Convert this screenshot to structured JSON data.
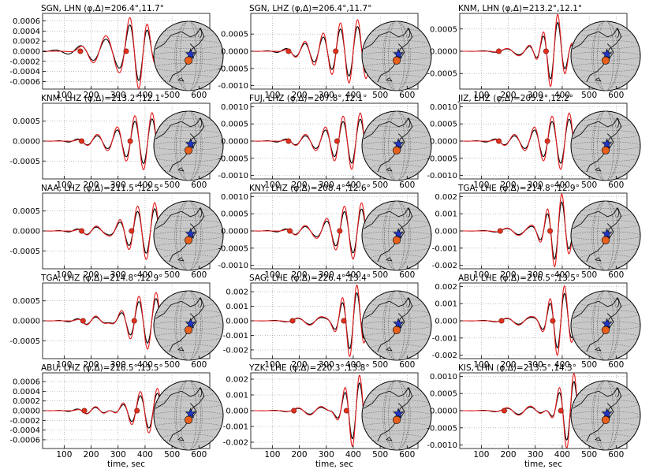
{
  "figure": {
    "xlabel": "time, sec",
    "colors": {
      "observed": "#000000",
      "synthetic": "#e41a1c",
      "marker_fill": "#e0301e",
      "globe_fill": "#c8c8c8",
      "station_marker": "#1f35c6",
      "event_marker": "#e8601c",
      "grid": "#9a9a9a"
    }
  },
  "chart_data": [
    {
      "type": "line",
      "title": "SGN, LHN (φ,Δ)=206.4°,11.7°",
      "xlim": [
        20,
        640
      ],
      "xticks": [
        100,
        200,
        300,
        400,
        500,
        600
      ],
      "ylim": [
        -0.00075,
        0.00075
      ],
      "yticks": [
        "0.0006",
        "0.0004",
        "0.0002",
        "0.0000",
        "-0.0002",
        "-0.0004",
        "-0.0006"
      ],
      "ytick_values": [
        0.0006,
        0.0004,
        0.0002,
        0,
        -0.0002,
        -0.0004,
        -0.0006
      ],
      "markers": [
        160,
        330
      ],
      "wave": {
        "amp": 0.00065,
        "center": 390,
        "shape": "A"
      },
      "show_xticklabels": true,
      "show_xlabel": false
    },
    {
      "type": "line",
      "title": "SGN, LHZ (φ,Δ)=206.4°,11.7°",
      "xlim": [
        20,
        640
      ],
      "xticks": [
        100,
        200,
        300,
        400,
        500,
        600
      ],
      "ylim": [
        -0.0011,
        0.0011
      ],
      "yticks": [
        "0.0005",
        "0.0000",
        "-0.0005",
        "-0.0010"
      ],
      "ytick_values": [
        0.0005,
        0,
        -0.0005,
        -0.001
      ],
      "markers": [
        160,
        335
      ],
      "wave": {
        "amp": 0.0009,
        "center": 400,
        "shape": "B"
      },
      "show_xticklabels": true,
      "show_xlabel": false
    },
    {
      "type": "line",
      "title": "KNM, LHN (φ,Δ)=213.2°,12.1°",
      "xlim": [
        20,
        640
      ],
      "xticks": [
        100,
        200,
        300,
        400,
        500,
        600
      ],
      "ylim": [
        -0.00085,
        0.00085
      ],
      "yticks": [
        "0.0005",
        "0.0000",
        "-0.0005"
      ],
      "ytick_values": [
        0.0005,
        0,
        -0.0005
      ],
      "markers": [
        165,
        340
      ],
      "wave": {
        "amp": 0.00075,
        "center": 370,
        "shape": "C"
      },
      "show_xticklabels": true,
      "show_xlabel": false
    },
    {
      "type": "line",
      "title": "KNM, LHZ (φ,Δ)=213.2°,12.1°",
      "xlim": [
        20,
        640
      ],
      "xticks": [
        100,
        200,
        300,
        400,
        500,
        600
      ],
      "ylim": [
        -0.00095,
        0.00095
      ],
      "yticks": [
        "0.0005",
        "0.0000",
        "-0.0005"
      ],
      "ytick_values": [
        0.0005,
        0,
        -0.0005
      ],
      "markers": [
        165,
        345
      ],
      "wave": {
        "amp": 0.0007,
        "center": 410,
        "shape": "B"
      },
      "show_xticklabels": true,
      "show_xlabel": false
    },
    {
      "type": "line",
      "title": "FUJ, LHZ (φ,Δ)=207.8°,12.1°",
      "xlim": [
        20,
        640
      ],
      "xticks": [
        100,
        200,
        300,
        400,
        500,
        600
      ],
      "ylim": [
        -0.0011,
        0.0011
      ],
      "yticks": [
        "0.0010",
        "0.0005",
        "0.0000",
        "-0.0005",
        "-0.0010"
      ],
      "ytick_values": [
        0.001,
        0.0005,
        0,
        -0.0005,
        -0.001
      ],
      "markers": [
        160,
        340
      ],
      "wave": {
        "amp": 0.0008,
        "center": 410,
        "shape": "B"
      },
      "show_xticklabels": true,
      "show_xlabel": false
    },
    {
      "type": "line",
      "title": "JIZ, LHZ (φ,Δ)=205.2°,12.2°",
      "xlim": [
        20,
        640
      ],
      "xticks": [
        100,
        200,
        300,
        400,
        500,
        600
      ],
      "ylim": [
        -0.0011,
        0.0011
      ],
      "yticks": [
        "0.0010",
        "0.0005",
        "0.0000",
        "-0.0005",
        "-0.0010"
      ],
      "ytick_values": [
        0.001,
        0.0005,
        0,
        -0.0005,
        -0.001
      ],
      "markers": [
        165,
        345
      ],
      "wave": {
        "amp": 0.0008,
        "center": 410,
        "shape": "B"
      },
      "show_xticklabels": true,
      "show_xlabel": false
    },
    {
      "type": "line",
      "title": "NAA, LHZ (φ,Δ)=211.5°,12.5°",
      "xlim": [
        20,
        640
      ],
      "xticks": [
        100,
        200,
        300,
        400,
        500,
        600
      ],
      "ylim": [
        -0.00095,
        0.00095
      ],
      "yticks": [
        "0.0005",
        "0.0000",
        "-0.0005"
      ],
      "ytick_values": [
        0.0005,
        0,
        -0.0005
      ],
      "markers": [
        165,
        350
      ],
      "wave": {
        "amp": 0.0007,
        "center": 420,
        "shape": "B"
      },
      "show_xticklabels": true,
      "show_xlabel": false
    },
    {
      "type": "line",
      "title": "KNY, LHZ (φ,Δ)=208.4°,12.6°",
      "xlim": [
        20,
        640
      ],
      "xticks": [
        100,
        200,
        300,
        400,
        500,
        600
      ],
      "ylim": [
        -0.0011,
        0.0011
      ],
      "yticks": [
        "0.0010",
        "0.0005",
        "0.0000",
        "-0.0005",
        "-0.0010"
      ],
      "ytick_values": [
        0.001,
        0.0005,
        0,
        -0.0005,
        -0.001
      ],
      "markers": [
        165,
        350
      ],
      "wave": {
        "amp": 0.0008,
        "center": 415,
        "shape": "B"
      },
      "show_xticklabels": true,
      "show_xlabel": false
    },
    {
      "type": "line",
      "title": "TGA, LHE (φ,Δ)=214.8°,12.9°",
      "xlim": [
        20,
        640
      ],
      "xticks": [
        100,
        200,
        300,
        400,
        500,
        600
      ],
      "ylim": [
        -0.0022,
        0.0022
      ],
      "yticks": [
        "0.002",
        "0.001",
        "0.000",
        "-0.001",
        "-0.002"
      ],
      "ytick_values": [
        0.002,
        0.001,
        0,
        -0.001,
        -0.002
      ],
      "markers": [
        170,
        355
      ],
      "wave": {
        "amp": 0.002,
        "center": 385,
        "shape": "C"
      },
      "show_xticklabels": true,
      "show_xlabel": false
    },
    {
      "type": "line",
      "title": "TGA, LHZ (φ,Δ)=214.8°,12.9°",
      "xlim": [
        20,
        640
      ],
      "xticks": [
        100,
        200,
        300,
        400,
        500,
        600
      ],
      "ylim": [
        -0.00095,
        0.00095
      ],
      "yticks": [
        "0.0005",
        "0.0000",
        "-0.0005"
      ],
      "ytick_values": [
        0.0005,
        0,
        -0.0005
      ],
      "markers": [
        170,
        360
      ],
      "wave": {
        "amp": 0.0007,
        "center": 425,
        "shape": "B"
      },
      "show_xticklabels": true,
      "show_xlabel": false
    },
    {
      "type": "line",
      "title": "SAG, LHE (φ,Δ)=226.4°,13.4°",
      "xlim": [
        20,
        640
      ],
      "xticks": [
        100,
        200,
        300,
        400,
        500,
        600
      ],
      "ylim": [
        -0.0026,
        0.0026
      ],
      "yticks": [
        "0.002",
        "0.001",
        "0.000",
        "-0.001",
        "-0.002"
      ],
      "ytick_values": [
        0.002,
        0.001,
        0,
        -0.001,
        -0.002
      ],
      "markers": [
        175,
        365
      ],
      "wave": {
        "amp": 0.0023,
        "center": 400,
        "shape": "C"
      },
      "show_xticklabels": true,
      "show_xlabel": false
    },
    {
      "type": "line",
      "title": "ABU, LHE (φ,Δ)=216.5°,13.5°",
      "xlim": [
        20,
        640
      ],
      "xticks": [
        100,
        200,
        300,
        400,
        500,
        600
      ],
      "ylim": [
        -0.0022,
        0.0022
      ],
      "yticks": [
        "0.002",
        "0.001",
        "0.000",
        "-0.001",
        "-0.002"
      ],
      "ytick_values": [
        0.002,
        0.001,
        0,
        -0.001,
        -0.002
      ],
      "markers": [
        175,
        365
      ],
      "wave": {
        "amp": 0.0019,
        "center": 395,
        "shape": "C"
      },
      "show_xticklabels": true,
      "show_xlabel": false
    },
    {
      "type": "line",
      "title": "ABU, LHZ (φ,Δ)=216.5°,13.5°",
      "xlim": [
        20,
        640
      ],
      "xticks": [
        100,
        200,
        300,
        400,
        500,
        600
      ],
      "ylim": [
        -0.00078,
        0.00078
      ],
      "yticks": [
        "0.0006",
        "0.0004",
        "0.0002",
        "0.0000",
        "-0.0002",
        "-0.0004",
        "-0.0006"
      ],
      "ytick_values": [
        0.0006,
        0.0004,
        0.0002,
        0,
        -0.0002,
        -0.0004,
        -0.0006
      ],
      "markers": [
        175,
        370
      ],
      "wave": {
        "amp": 0.00045,
        "center": 430,
        "shape": "B"
      },
      "show_xticklabels": true,
      "show_xlabel": true
    },
    {
      "type": "line",
      "title": "YZK, LHE (φ,Δ)=220.3°,13.8°",
      "xlim": [
        20,
        640
      ],
      "xticks": [
        100,
        200,
        300,
        400,
        500,
        600
      ],
      "ylim": [
        -0.0024,
        0.0024
      ],
      "yticks": [
        "0.002",
        "0.001",
        "0.000",
        "-0.001",
        "-0.002"
      ],
      "ytick_values": [
        0.002,
        0.001,
        0,
        -0.001,
        -0.002
      ],
      "markers": [
        180,
        375
      ],
      "wave": {
        "amp": 0.0021,
        "center": 410,
        "shape": "C"
      },
      "show_xticklabels": true,
      "show_xlabel": true
    },
    {
      "type": "line",
      "title": "KIS, LHN (φ,Δ)=213.5°,14.3°",
      "xlim": [
        20,
        640
      ],
      "xticks": [
        100,
        200,
        300,
        400,
        500,
        600
      ],
      "ylim": [
        -0.0011,
        0.0011
      ],
      "yticks": [
        "0.0010",
        "0.0005",
        "0.0000",
        "-0.0005",
        "-0.0010"
      ],
      "ytick_values": [
        0.001,
        0.0005,
        0,
        -0.0005,
        -0.001
      ],
      "markers": [
        185,
        395
      ],
      "wave": {
        "amp": 0.001,
        "center": 430,
        "shape": "C"
      },
      "show_xticklabels": true,
      "show_xlabel": true
    }
  ]
}
